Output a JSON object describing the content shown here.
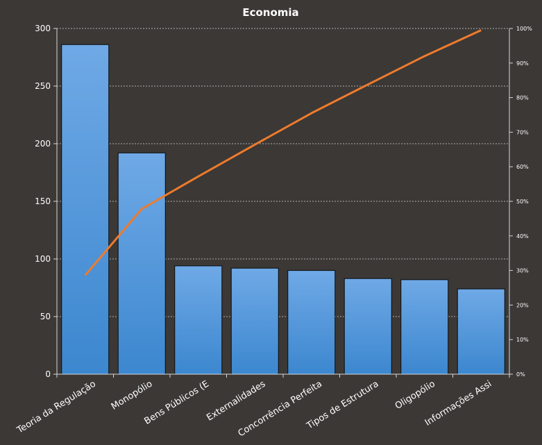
{
  "chart_data": {
    "type": "bar",
    "title": "Economia",
    "categories": [
      "Teoria da Regulação",
      "Monopólio",
      "Bens Públicos (E",
      "Externalidades",
      "Concorrência  Perfeita",
      "Tipos de Estrutura",
      "Oligopólio",
      "Informações  Assi"
    ],
    "series": [
      {
        "type": "bar",
        "axis": "left",
        "values": [
          286,
          192,
          94,
          92,
          90,
          83,
          82,
          74
        ]
      },
      {
        "type": "line",
        "axis": "right",
        "values": [
          0.286,
          0.478,
          0.572,
          0.664,
          0.755,
          0.838,
          0.92,
          0.995
        ]
      }
    ],
    "ylim": [
      0,
      300
    ],
    "y_ticks": [
      "0",
      "50",
      "100",
      "150",
      "200",
      "250",
      "300"
    ],
    "y2lim": [
      0,
      1
    ],
    "y2_ticks": [
      "0%",
      "10%",
      "20%",
      "30%",
      "40%",
      "50%",
      "60%",
      "70%",
      "80%",
      "90%",
      "100%"
    ],
    "grid": true,
    "colors": {
      "background": "#3b3836",
      "bar_top": "#6fa9e6",
      "bar_bottom": "#3c87cf",
      "bar_stroke": "#0b0b0b",
      "line": "#ee7b2c",
      "grid": "#d8d8d8",
      "text": "#ffffff"
    }
  }
}
